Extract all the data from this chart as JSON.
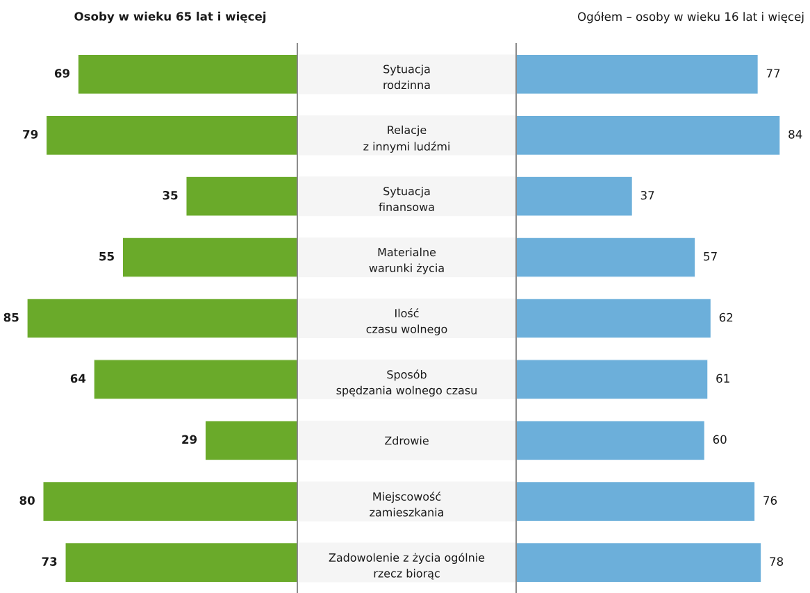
{
  "chart_data": [
    {
      "type": "bar",
      "orientation": "horizontal",
      "title": "Osoby w wieku 65 lat i więcej",
      "categories": [
        "Sytuacja\nrodzinna",
        "Relacje\nz innymi ludźmi",
        "Sytuacja\nfinansowa",
        "Materialne\nwarunki życia",
        "Ilość\nczasu wolnego",
        "Sposób\nspędzania wolnego czasu",
        "Zdrowie",
        "Miejscowość\nzamieszkania",
        "Zadowolenie z życia ogólnie\nrzecz biorąc"
      ],
      "values": [
        69,
        79,
        35,
        55,
        85,
        64,
        29,
        80,
        73
      ],
      "color": "#6aaa2a",
      "data_labels": true,
      "tick_labels": "y",
      "grid": false,
      "legend": false
    },
    {
      "type": "bar",
      "orientation": "horizontal",
      "title": "Ogółem – osoby w wieku 16 lat i więcej",
      "categories": [
        null,
        null,
        null,
        null,
        null,
        null,
        null,
        null,
        null
      ],
      "values": [
        77,
        84,
        37,
        57,
        62,
        61,
        60,
        76,
        78
      ],
      "color": "#6cafda",
      "data_labels": true,
      "tick_labels": false,
      "grid": false,
      "legend": false
    }
  ]
}
